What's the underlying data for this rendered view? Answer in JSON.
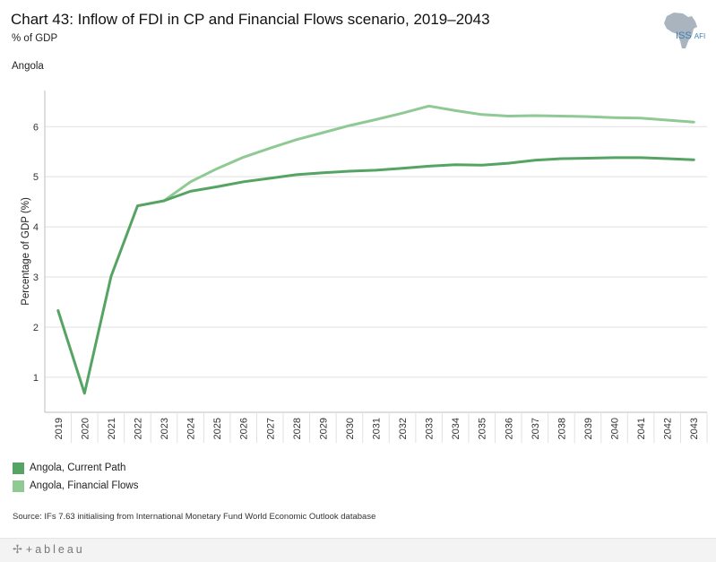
{
  "header": {
    "title": "Chart 43: Inflow of FDI in CP and Financial Flows scenario, 2019–2043",
    "subtitle": "% of GDP",
    "region": "Angola",
    "logo_main": "ISS",
    "logo_sub": "AFI"
  },
  "colors": {
    "current_path": "#55a463",
    "financial_flows": "#8fc994",
    "grid": "#e1e1e1",
    "axis": "#bdbdbd",
    "footer_bg": "#f3f3f3",
    "logo_map": "#a9b4bf",
    "logo_text": "#3d7fb5"
  },
  "chart_data": {
    "type": "line",
    "title": "Chart 43: Inflow of FDI in CP and Financial Flows scenario, 2019–2043",
    "xlabel": "",
    "ylabel": "Percentage of GDP (%)",
    "x": [
      "2019",
      "2020",
      "2021",
      "2022",
      "2023",
      "2024",
      "2025",
      "2026",
      "2027",
      "2028",
      "2029",
      "2030",
      "2031",
      "2032",
      "2033",
      "2034",
      "2035",
      "2036",
      "2037",
      "2038",
      "2039",
      "2040",
      "2041",
      "2042",
      "2043"
    ],
    "yticks": [
      1,
      2,
      3,
      4,
      5,
      6
    ],
    "ylim": [
      0.3,
      6.72
    ],
    "grid": true,
    "series": [
      {
        "name": "Angola,  Current Path",
        "color_key": "current_path",
        "values": [
          2.33,
          0.68,
          3.01,
          4.42,
          4.52,
          4.71,
          4.8,
          4.9,
          4.97,
          5.04,
          5.08,
          5.11,
          5.13,
          5.17,
          5.21,
          5.24,
          5.23,
          5.27,
          5.33,
          5.36,
          5.37,
          5.38,
          5.38,
          5.36,
          5.34
        ]
      },
      {
        "name": "Angola,  Financial Flows",
        "color_key": "financial_flows",
        "values": [
          null,
          null,
          null,
          null,
          4.52,
          4.9,
          5.16,
          5.39,
          5.57,
          5.74,
          5.88,
          6.02,
          6.14,
          6.27,
          6.41,
          6.32,
          6.24,
          6.21,
          6.22,
          6.21,
          6.2,
          6.18,
          6.17,
          6.13,
          6.09
        ]
      }
    ],
    "legend": "bottom-left"
  },
  "source": "Source: IFs 7.63 initialising from International Monetary Fund World Economic Outlook database",
  "footer": {
    "mark": "✢",
    "brand": "+ableau"
  }
}
